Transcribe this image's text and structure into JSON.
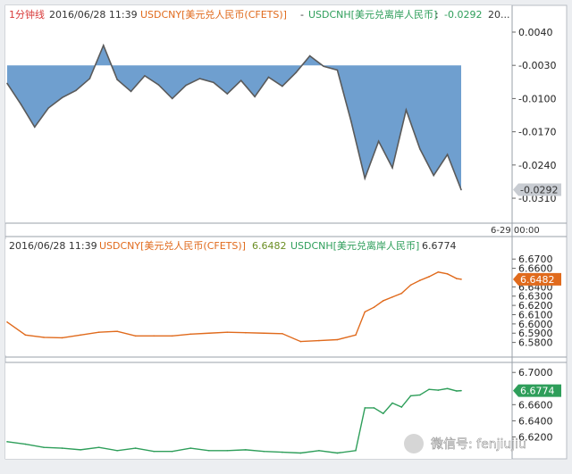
{
  "header": {
    "period_label": "1分钟线",
    "datetime": "2016/06/28 11:39",
    "series1_name": "USDCNY[美元兑人民币(CFETS)]",
    "separator": "-",
    "series2_name": "USDCNH[美元兑离岸人民币]",
    "colon": ":",
    "diff_value": "-0.0292",
    "scroll_label": "20..."
  },
  "panel2_header": {
    "datetime": "2016/06/28 11:39",
    "cny_name": "USDCNY[美元兑人民币(CFETS)]",
    "cny_value": "6.6482",
    "cnh_name": "USDCNH[美元兑离岸人民币]",
    "cnh_value": "6.6774"
  },
  "time_label": "6-29 00:00",
  "watermark": "微信号: fenjiujiu",
  "colors": {
    "diff_fill": "#6f9fcf",
    "diff_line": "#5a5a5a",
    "cny": "#e06a1c",
    "cnh": "#2e9e5a",
    "label_red": "#d83a3a",
    "label_orange": "#e06a1c",
    "label_green": "#2e9e5a"
  },
  "chart_data": [
    {
      "type": "area",
      "name": "spread",
      "series_name": "USDCNY[美元兑人民币(CFETS)] - USDCNH[美元兑离岸人民币]",
      "yticks": [
        "0.0040",
        "-0.0030",
        "-0.0100",
        "-0.0170",
        "-0.0240",
        "-0.0310"
      ],
      "ylim": [
        -0.034,
        0.0055
      ],
      "baseline": -0.003,
      "last_value": "-0.0292",
      "x": [
        0,
        3,
        6,
        9,
        12,
        15,
        18,
        21,
        24,
        27,
        30,
        33,
        36,
        39,
        42,
        45,
        48,
        51,
        54,
        57,
        60,
        63,
        66,
        69,
        72,
        75,
        78,
        81,
        84,
        87,
        90,
        93,
        96,
        99
      ],
      "y": [
        -0.0068,
        -0.0112,
        -0.016,
        -0.012,
        -0.0098,
        -0.0083,
        -0.0058,
        0.0012,
        -0.006,
        -0.0085,
        -0.0052,
        -0.0071,
        -0.01,
        -0.0072,
        -0.0058,
        -0.0066,
        -0.009,
        -0.0062,
        -0.0096,
        -0.0055,
        -0.0074,
        -0.0045,
        -0.001,
        -0.0032,
        -0.004,
        -0.0148,
        -0.0268,
        -0.019,
        -0.0246,
        -0.0124,
        -0.0206,
        -0.0262,
        -0.0218,
        -0.0292
      ]
    },
    {
      "type": "line",
      "name": "USDCNY[美元兑人民币(CFETS)]",
      "yticks": [
        "6.6700",
        "6.6600",
        "6.6400",
        "6.6300",
        "6.6200",
        "6.6100",
        "6.6000",
        "6.5900",
        "6.5800"
      ],
      "ylim": [
        6.57,
        6.676
      ],
      "last_value": "6.6482",
      "x": [
        0,
        4,
        8,
        12,
        16,
        20,
        24,
        28,
        32,
        36,
        40,
        44,
        48,
        52,
        56,
        60,
        64,
        68,
        72,
        76,
        78,
        80,
        82,
        84,
        86,
        88,
        90,
        92,
        94,
        96,
        98,
        99
      ],
      "y": [
        6.602,
        6.588,
        6.5855,
        6.585,
        6.588,
        6.591,
        6.592,
        6.587,
        6.587,
        6.587,
        6.589,
        6.59,
        6.591,
        6.5905,
        6.59,
        6.5895,
        6.581,
        6.582,
        6.583,
        6.588,
        6.613,
        6.618,
        6.625,
        6.629,
        6.633,
        6.642,
        6.647,
        6.651,
        6.656,
        6.654,
        6.649,
        6.6482
      ]
    },
    {
      "type": "line",
      "name": "USDCNH[美元兑离岸人民币]",
      "yticks": [
        "6.7000",
        "6.6600",
        "6.6400",
        "6.6200"
      ],
      "ylim": [
        6.595,
        6.708
      ],
      "last_value": "6.6774",
      "x": [
        0,
        4,
        8,
        12,
        16,
        20,
        24,
        28,
        32,
        36,
        40,
        44,
        48,
        52,
        56,
        60,
        64,
        68,
        72,
        76,
        78,
        80,
        82,
        84,
        86,
        88,
        90,
        92,
        94,
        96,
        98,
        99
      ],
      "y": [
        6.614,
        6.611,
        6.607,
        6.606,
        6.604,
        6.607,
        6.603,
        6.606,
        6.602,
        6.602,
        6.606,
        6.603,
        6.603,
        6.604,
        6.602,
        6.601,
        6.6,
        6.603,
        6.6,
        6.603,
        6.656,
        6.656,
        6.649,
        6.662,
        6.657,
        6.671,
        6.672,
        6.679,
        6.678,
        6.68,
        6.677,
        6.6774
      ]
    }
  ]
}
